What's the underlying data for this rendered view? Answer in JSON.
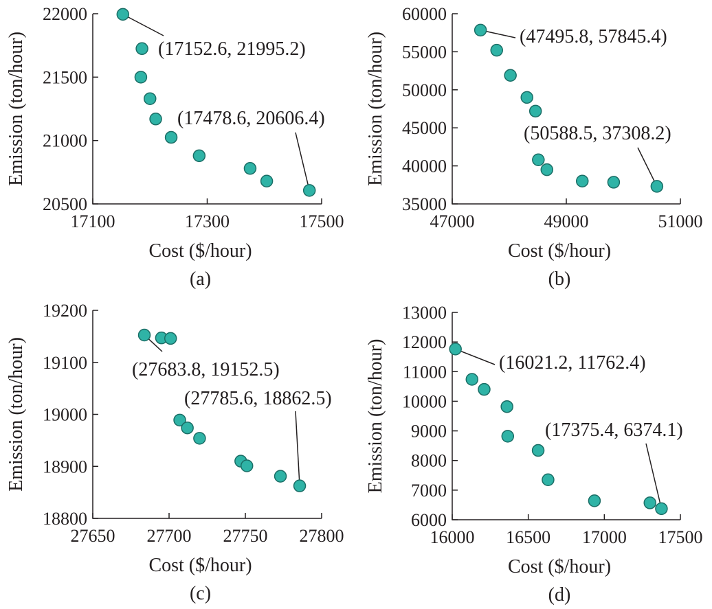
{
  "colors": {
    "marker_fill": "#2fb3a6",
    "marker_edge": "#1b6e66",
    "axis": "#231f20"
  },
  "chart_data": [
    {
      "type": "scatter",
      "panel_label": "(a)",
      "xlabel": "Cost ($/hour)",
      "ylabel": "Emission (ton/hour)",
      "xlim": [
        17100,
        17500
      ],
      "ylim": [
        20500,
        22000
      ],
      "xticks": [
        "17100",
        "17300",
        "17500"
      ],
      "yticks": [
        "20500",
        "21000",
        "21500",
        "22000"
      ],
      "points": [
        [
          17152.6,
          21995.2
        ],
        [
          17186,
          21725
        ],
        [
          17184,
          21500
        ],
        [
          17200,
          21330
        ],
        [
          17210,
          21170
        ],
        [
          17237,
          21025
        ],
        [
          17286,
          20880
        ],
        [
          17375,
          20780
        ],
        [
          17404,
          20680
        ],
        [
          17478.6,
          20606.4
        ]
      ],
      "annotations": [
        {
          "text": "(17152.6, 21995.2)",
          "point": [
            17152.6,
            21995.2
          ]
        },
        {
          "text": "(17478.6, 20606.4)",
          "point": [
            17478.6,
            20606.4
          ]
        }
      ]
    },
    {
      "type": "scatter",
      "panel_label": "(b)",
      "xlabel": "Cost ($/hour)",
      "ylabel": "Emission (ton/hour)",
      "xlim": [
        47000,
        51000
      ],
      "ylim": [
        35000,
        60000
      ],
      "xticks": [
        "47000",
        "49000",
        "51000"
      ],
      "yticks": [
        "35000",
        "40000",
        "45000",
        "50000",
        "55000",
        "60000"
      ],
      "points": [
        [
          47495.8,
          57845.4
        ],
        [
          47780,
          55200
        ],
        [
          48020,
          51900
        ],
        [
          48310,
          49000
        ],
        [
          48460,
          47200
        ],
        [
          48510,
          40800
        ],
        [
          48660,
          39500
        ],
        [
          49280,
          38000
        ],
        [
          49830,
          37850
        ],
        [
          50588.5,
          37308.2
        ]
      ],
      "annotations": [
        {
          "text": "(47495.8, 57845.4)",
          "point": [
            47495.8,
            57845.4
          ]
        },
        {
          "text": "(50588.5, 37308.2)",
          "point": [
            50588.5,
            37308.2
          ]
        }
      ]
    },
    {
      "type": "scatter",
      "panel_label": "(c)",
      "xlabel": "Cost ($/hour)",
      "ylabel": "Emission (ton/hour)",
      "xlim": [
        27650,
        27800
      ],
      "ylim": [
        18800,
        19200
      ],
      "xticks": [
        "27650",
        "27700",
        "27750",
        "27800"
      ],
      "yticks": [
        "18800",
        "18900",
        "19000",
        "19100",
        "19200"
      ],
      "points": [
        [
          27683.8,
          19152.5
        ],
        [
          27695,
          19147
        ],
        [
          27701,
          19146
        ],
        [
          27707,
          18989
        ],
        [
          27712,
          18974
        ],
        [
          27720,
          18954
        ],
        [
          27747,
          18910
        ],
        [
          27751,
          18901
        ],
        [
          27773,
          18881
        ],
        [
          27785.6,
          18862.5
        ]
      ],
      "annotations": [
        {
          "text": "(27683.8, 19152.5)",
          "point": [
            27683.8,
            19152.5
          ]
        },
        {
          "text": "(27785.6, 18862.5)",
          "point": [
            27785.6,
            18862.5
          ]
        }
      ]
    },
    {
      "type": "scatter",
      "panel_label": "(d)",
      "xlabel": "Cost ($/hour)",
      "ylabel": "Emission (ton/hour)",
      "xlim": [
        16000,
        17500
      ],
      "ylim": [
        6000,
        13000
      ],
      "xticks": [
        "16000",
        "16500",
        "17000",
        "17500"
      ],
      "yticks": [
        "6000",
        "7000",
        "8000",
        "9000",
        "10000",
        "11000",
        "12000",
        "13000"
      ],
      "points": [
        [
          16021.2,
          11762.4
        ],
        [
          16130,
          10740
        ],
        [
          16210,
          10400
        ],
        [
          16360,
          9820
        ],
        [
          16365,
          8820
        ],
        [
          16565,
          8340
        ],
        [
          16630,
          7350
        ],
        [
          16935,
          6640
        ],
        [
          17300,
          6570
        ],
        [
          17375.4,
          6374.1
        ]
      ],
      "annotations": [
        {
          "text": "(16021.2, 11762.4)",
          "point": [
            16021.2,
            11762.4
          ]
        },
        {
          "text": "(17375.4, 6374.1)",
          "point": [
            17375.4,
            6374.1
          ]
        }
      ]
    }
  ]
}
